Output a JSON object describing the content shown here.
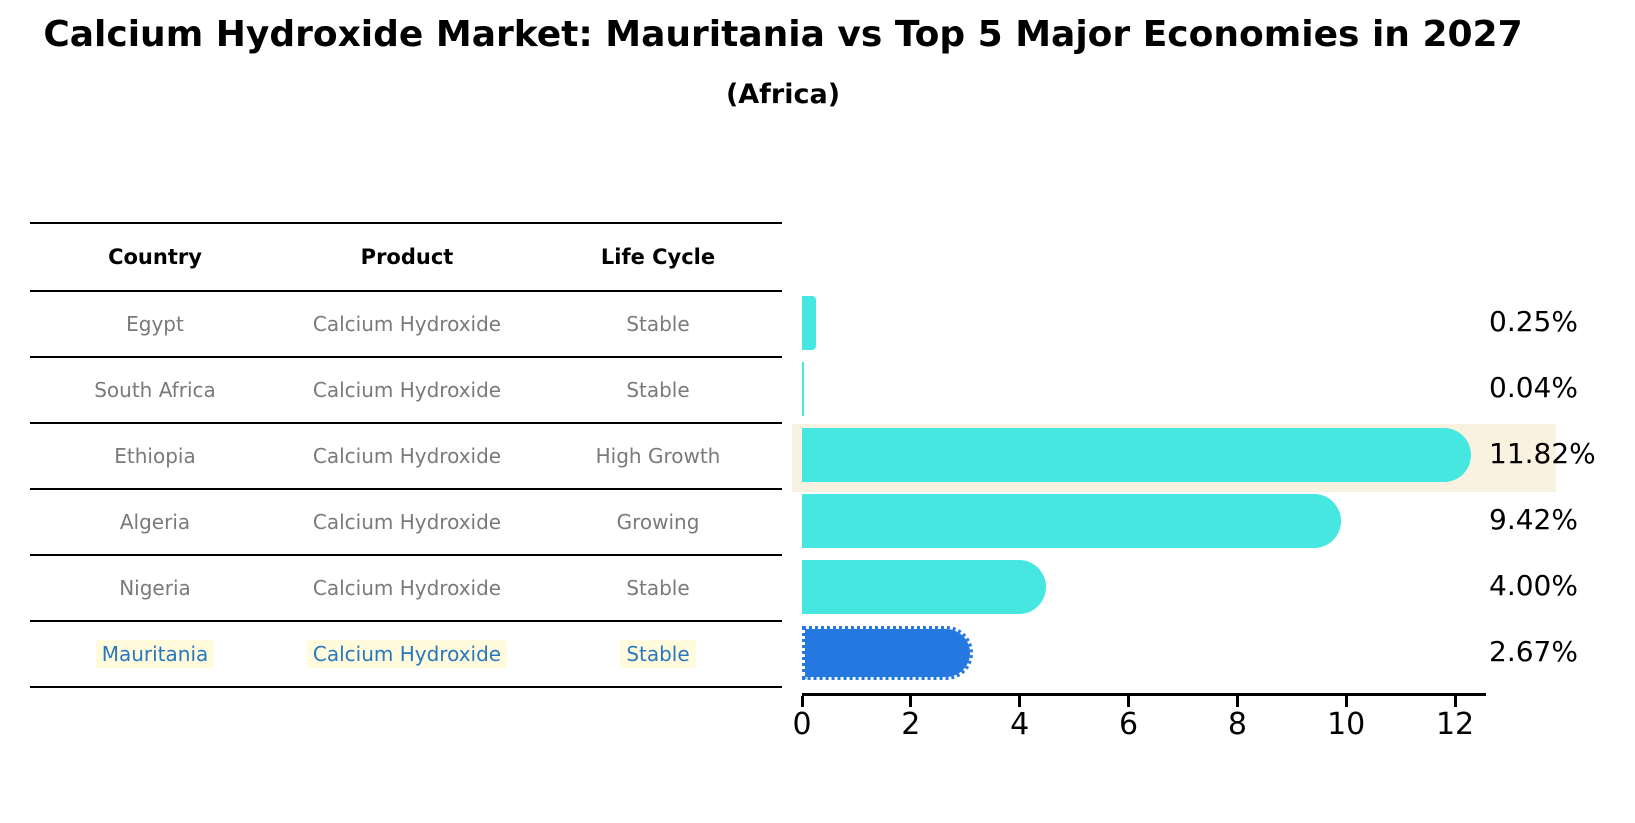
{
  "header": {
    "title": "Calcium Hydroxide Market: Mauritania vs Top 5 Major Economies in 2027",
    "subtitle": "(Africa)"
  },
  "table": {
    "headers": [
      "Country",
      "Product",
      "Life Cycle"
    ],
    "rows": [
      {
        "country": "Egypt",
        "product": "Calcium Hydroxide",
        "life_cycle": "Stable",
        "highlight": false
      },
      {
        "country": "South Africa",
        "product": "Calcium Hydroxide",
        "life_cycle": "Stable",
        "highlight": false
      },
      {
        "country": "Ethiopia",
        "product": "Calcium Hydroxide",
        "life_cycle": "High Growth",
        "highlight": false
      },
      {
        "country": "Algeria",
        "product": "Calcium Hydroxide",
        "life_cycle": "Growing",
        "highlight": false
      },
      {
        "country": "Nigeria",
        "product": "Calcium Hydroxide",
        "life_cycle": "Stable",
        "highlight": true
      }
    ],
    "focus_row": {
      "country": "Mauritania",
      "product": "Calcium Hydroxide",
      "life_cycle": "Stable",
      "highlight": true
    }
  },
  "chart_data": {
    "type": "bar",
    "orientation": "horizontal",
    "title": "Calcium Hydroxide Market: Mauritania vs Top 5 Major Economies in 2027",
    "subtitle": "(Africa)",
    "categories": [
      "Egypt",
      "South Africa",
      "Ethiopia",
      "Algeria",
      "Nigeria",
      "Mauritania"
    ],
    "values": [
      0.25,
      0.04,
      11.82,
      9.42,
      4.0,
      2.67
    ],
    "value_labels": [
      "0.25%",
      "0.04%",
      "11.82%",
      "9.42%",
      "4.00%",
      "2.67%"
    ],
    "xlabel": "",
    "ylabel": "",
    "xlim": [
      0,
      12.55
    ],
    "xticks": [
      "0",
      "2",
      "4",
      "6",
      "8",
      "10",
      "12"
    ],
    "xtick_values": [
      0,
      2,
      4,
      6,
      8,
      10,
      12
    ],
    "grid": false,
    "legend": false,
    "highlight_index": 5,
    "highlight_band_index": 2
  },
  "colors": {
    "bar_cyan": "#45e7e0",
    "bar_blue": "#2478e0",
    "focus_text_blue": "#2878be",
    "focus_cell_highlight": "#fffbdc",
    "band_cream": "#faf2e0",
    "table_text_gray": "#7a7a7a",
    "ink": "#000000"
  }
}
